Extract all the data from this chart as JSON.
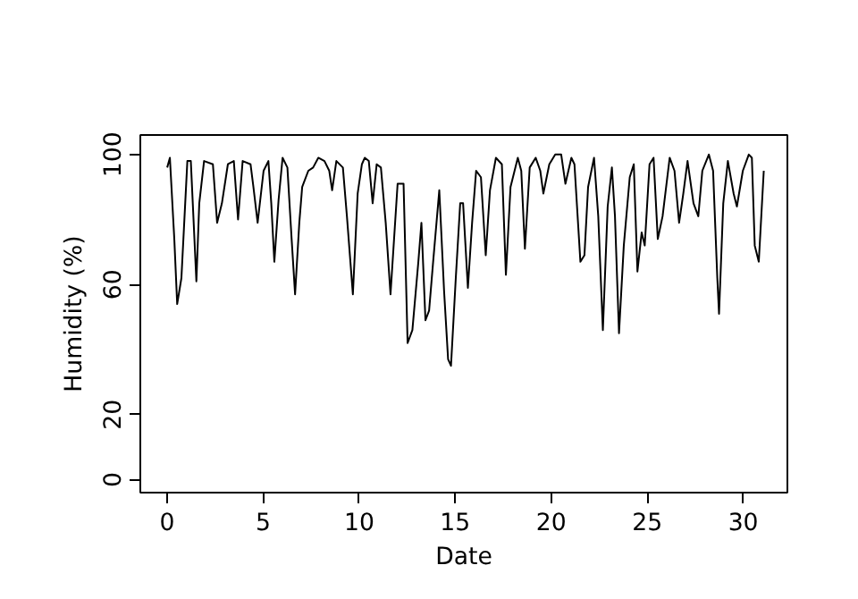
{
  "chart_data": {
    "type": "line",
    "xlabel": "Date",
    "ylabel": "Humidity (%)",
    "color": "#000000",
    "x": [
      0,
      0.14,
      0.37,
      0.52,
      0.74,
      1.05,
      1.23,
      1.52,
      1.67,
      1.92,
      2.38,
      2.6,
      2.85,
      3.16,
      3.47,
      3.69,
      3.93,
      4.34,
      4.49,
      4.71,
      5.02,
      5.27,
      5.42,
      5.58,
      5.8,
      6.01,
      6.26,
      6.48,
      6.66,
      6.88,
      7.03,
      7.35,
      7.6,
      7.87,
      8.19,
      8.44,
      8.59,
      8.81,
      9.15,
      9.36,
      9.67,
      9.92,
      10.14,
      10.29,
      10.5,
      10.7,
      10.91,
      11.13,
      11.38,
      11.63,
      12.0,
      12.31,
      12.52,
      12.77,
      13.08,
      13.24,
      13.45,
      13.64,
      13.85,
      14.17,
      14.42,
      14.63,
      14.78,
      15.03,
      15.26,
      15.41,
      15.66,
      15.88,
      16.09,
      16.34,
      16.59,
      16.81,
      17.12,
      17.43,
      17.64,
      17.88,
      18.26,
      18.44,
      18.63,
      18.88,
      19.19,
      19.43,
      19.59,
      19.9,
      20.21,
      20.52,
      20.74,
      21.05,
      21.21,
      21.52,
      21.73,
      21.92,
      22.23,
      22.45,
      22.69,
      22.94,
      23.16,
      23.32,
      23.53,
      23.78,
      24.09,
      24.3,
      24.49,
      24.71,
      24.87,
      25.12,
      25.33,
      25.55,
      25.8,
      26.17,
      26.42,
      26.66,
      26.88,
      27.1,
      27.41,
      27.66,
      27.87,
      28.21,
      28.43,
      28.65,
      28.74,
      28.96,
      29.2,
      29.5,
      29.67,
      29.98,
      30.29,
      30.45,
      30.6,
      30.81,
      31.07
    ],
    "values": [
      96,
      99,
      74,
      54,
      62,
      98,
      98,
      61,
      85,
      98,
      97,
      79,
      85,
      97,
      98,
      80,
      98,
      97,
      90,
      79,
      95,
      98,
      85,
      67,
      86,
      99,
      96,
      74,
      57,
      79,
      90,
      95,
      96,
      99,
      98,
      95,
      89,
      98,
      96,
      81,
      57,
      88,
      97,
      99,
      98,
      85,
      97,
      96,
      79,
      57,
      91,
      91,
      42,
      46,
      67,
      79,
      49,
      52,
      67,
      89,
      58,
      37,
      35,
      62,
      85,
      85,
      59,
      79,
      95,
      93,
      69,
      89,
      99,
      97,
      63,
      90,
      99,
      95,
      71,
      96,
      99,
      95,
      88,
      97,
      100,
      100,
      91,
      99,
      97,
      67,
      69,
      90,
      99,
      81,
      46,
      84,
      96,
      81,
      45,
      72,
      93,
      97,
      64,
      76,
      72,
      97,
      99,
      74,
      81,
      99,
      95,
      79,
      88,
      98,
      85,
      81,
      95,
      100,
      95,
      62,
      51,
      85,
      98,
      88,
      84,
      95,
      100,
      99,
      72,
      67,
      95
    ],
    "xlim": [
      -1.4,
      32.3
    ],
    "ylim": [
      -4,
      106
    ],
    "xticks": [
      0,
      5,
      10,
      15,
      20,
      25,
      30
    ],
    "yticks": [
      0,
      20,
      60,
      100
    ]
  }
}
